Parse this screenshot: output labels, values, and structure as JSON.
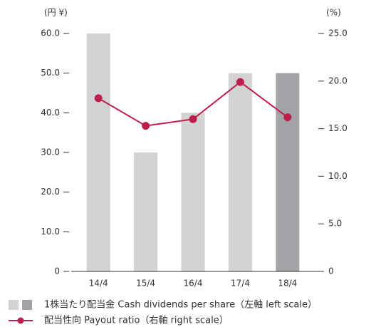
{
  "chart_data": {
    "type": "bar",
    "categories": [
      "14/4",
      "15/4",
      "16/4",
      "17/4",
      "18/4"
    ],
    "ylabel": "(円 ¥)",
    "y2label": "(%)",
    "ylim": [
      0,
      60
    ],
    "yticks": [
      0,
      {
        "value": 10,
        "label": "10.0"
      },
      {
        "value": 20,
        "label": "20.0"
      },
      {
        "value": 30,
        "label": "30.0"
      },
      {
        "value": 40,
        "label": "40.0"
      },
      {
        "value": 50,
        "label": "50.0"
      },
      {
        "value": 60,
        "label": "60.0"
      }
    ],
    "y2lim": [
      0,
      25
    ],
    "y2ticks": [
      0,
      {
        "value": 5,
        "label": "5.0"
      },
      {
        "value": 10,
        "label": "10.0"
      },
      {
        "value": 15,
        "label": "15.0"
      },
      {
        "value": 20,
        "label": "20.0"
      },
      {
        "value": 25,
        "label": "25.0"
      }
    ],
    "series": [
      {
        "name": "1株当たり配当金 Cash dividends per share（左軸 left scale）",
        "type": "bar",
        "colors": [
          "#d1d2d4",
          "#d1d2d4",
          "#d1d2d4",
          "#d1d2d4",
          "#a2a3a6"
        ],
        "values": [
          60,
          30,
          40,
          50,
          50
        ]
      },
      {
        "name": "配当性向 Payout ratio（右軸 right scale）",
        "type": "line",
        "axis": "y2",
        "color": "#be1e4b",
        "values": [
          18.2,
          15.3,
          16.0,
          19.9,
          16.2
        ]
      }
    ]
  }
}
